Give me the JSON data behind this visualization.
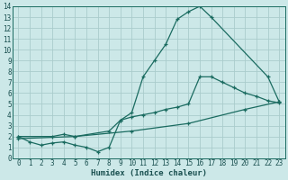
{
  "xlabel": "Humidex (Indice chaleur)",
  "bg_color": "#cce8e8",
  "grid_color": "#aacccc",
  "line_color": "#1a6b60",
  "xlim": [
    -0.5,
    23.5
  ],
  "ylim": [
    0,
    14
  ],
  "xticks": [
    0,
    1,
    2,
    3,
    4,
    5,
    6,
    7,
    8,
    9,
    10,
    11,
    12,
    13,
    14,
    15,
    16,
    17,
    18,
    19,
    20,
    21,
    22,
    23
  ],
  "yticks": [
    0,
    1,
    2,
    3,
    4,
    5,
    6,
    7,
    8,
    9,
    10,
    11,
    12,
    13,
    14
  ],
  "line1_x": [
    0,
    1,
    2,
    3,
    4,
    5,
    6,
    7,
    8,
    9,
    10,
    11,
    12,
    13,
    14,
    15,
    16,
    17,
    22,
    23
  ],
  "line1_y": [
    2.0,
    1.5,
    1.2,
    1.4,
    1.5,
    1.2,
    1.0,
    0.6,
    1.0,
    3.5,
    4.2,
    7.5,
    9.0,
    10.5,
    12.8,
    13.5,
    14.0,
    13.0,
    7.5,
    5.2
  ],
  "line2_x": [
    0,
    3,
    4,
    5,
    8,
    9,
    10,
    11,
    12,
    13,
    14,
    15,
    16,
    17,
    18,
    19,
    20,
    21,
    22,
    23
  ],
  "line2_y": [
    2.0,
    2.0,
    2.2,
    2.0,
    2.5,
    3.5,
    3.8,
    4.0,
    4.2,
    4.5,
    4.7,
    5.0,
    7.5,
    7.5,
    7.0,
    6.5,
    6.0,
    5.7,
    5.3,
    5.1
  ],
  "line3_x": [
    0,
    5,
    10,
    15,
    20,
    23
  ],
  "line3_y": [
    1.8,
    2.0,
    2.5,
    3.2,
    4.5,
    5.2
  ]
}
